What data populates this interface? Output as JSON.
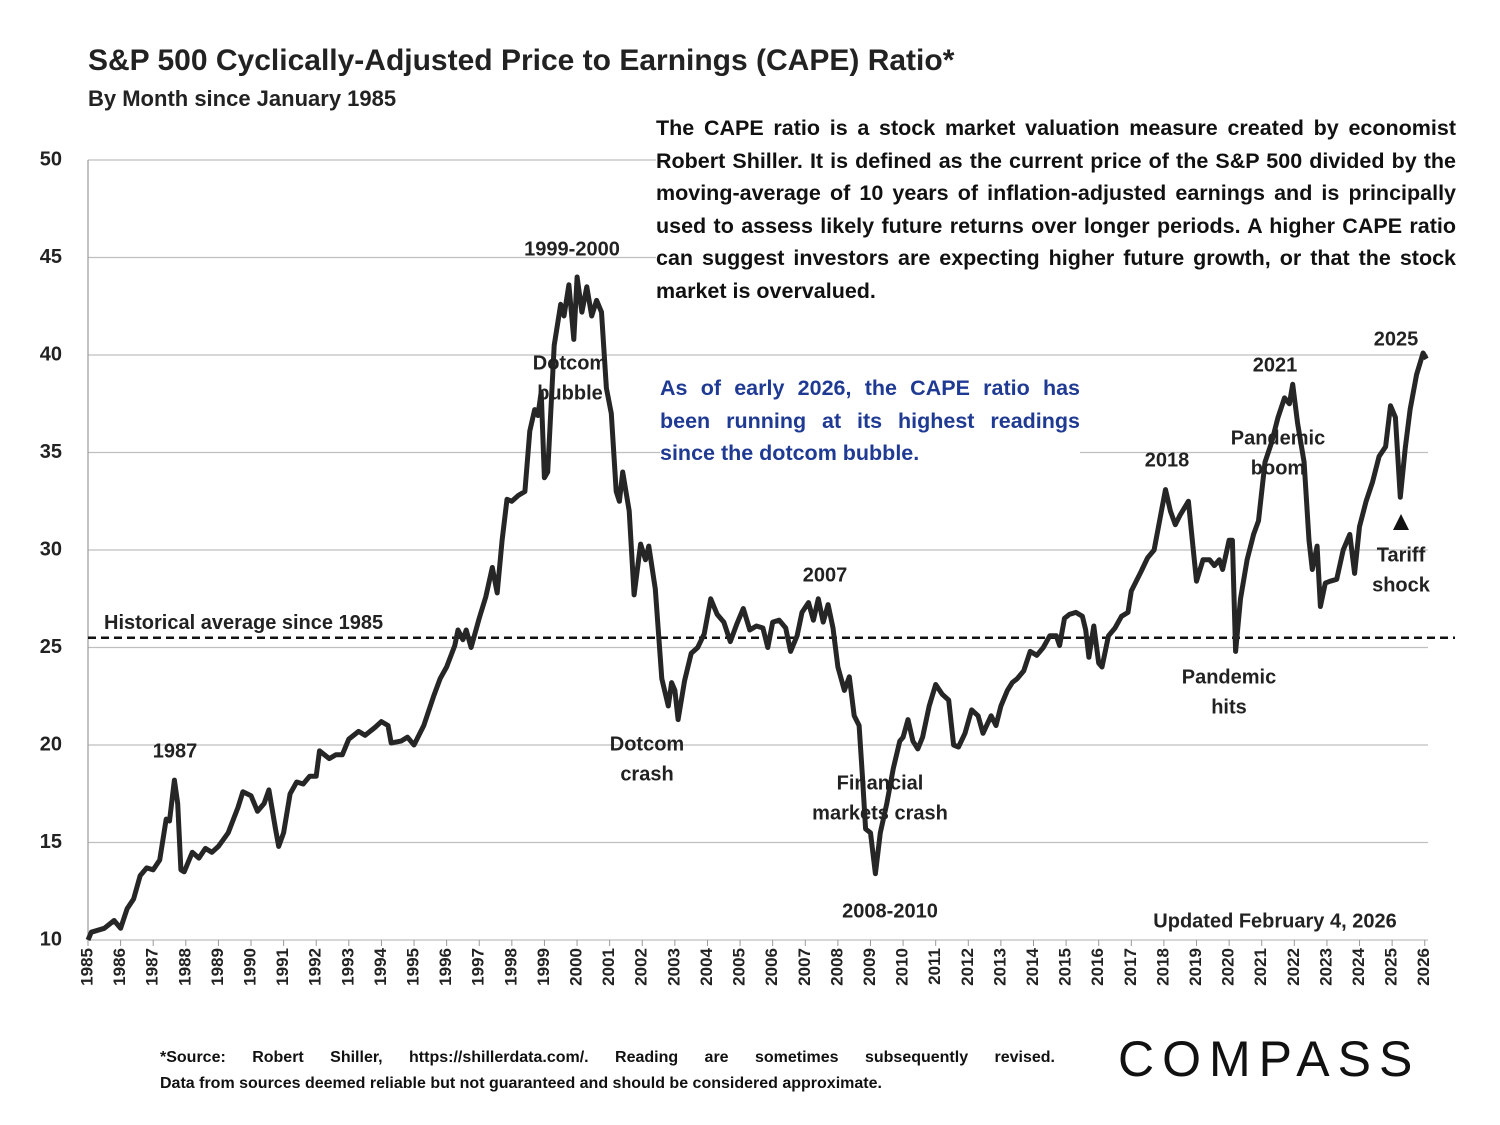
{
  "chart_data": {
    "type": "line",
    "title": "S&P 500 Cyclically-Adjusted Price to Earnings (CAPE) Ratio*",
    "subtitle": "By Month since January 1985",
    "description": "The CAPE ratio is a stock market valuation measure created by economist Robert Shiller. It is defined as the current price of the S&P 500 divided by the moving-average of 10 years of inflation-adjusted earnings and is principally used to assess likely future returns over longer periods. A higher CAPE ratio can suggest investors are expecting higher future growth, or that the stock market is overvalued.",
    "note": "As of early 2026, the CAPE ratio has been running at its highest readings since the dotcom bubble.",
    "updated": "Updated February 4, 2026",
    "source": [
      "*Source: Robert Shiller, https://shillerdata.com/. Reading are sometimes subsequently revised.",
      "Data from sources deemed reliable but not guaranteed and should be considered approximate."
    ],
    "logo": "COMPASS",
    "color": "#262626",
    "grid": true,
    "reference_line": {
      "value": 25.5,
      "label": "Historical average since 1985"
    },
    "annotations": [
      [
        "1987"
      ],
      [
        "1999-2000"
      ],
      [
        "Dotcom",
        "bubble"
      ],
      [
        "Dotcom",
        "crash"
      ],
      [
        "2007"
      ],
      [
        "Financial",
        "markets crash"
      ],
      [
        "2008-2010"
      ],
      [
        "2018"
      ],
      [
        "2021"
      ],
      [
        "Pandemic",
        "boom"
      ],
      [
        "Pandemic",
        "hits"
      ],
      [
        "2025"
      ],
      [
        "Tariff",
        "shock"
      ]
    ],
    "xlim": [
      1985,
      2026.1
    ],
    "xticks": [
      1985,
      1986,
      1987,
      1988,
      1989,
      1990,
      1991,
      1992,
      1993,
      1994,
      1995,
      1996,
      1997,
      1998,
      1999,
      2000,
      2001,
      2002,
      2003,
      2004,
      2005,
      2006,
      2007,
      2008,
      2009,
      2010,
      2011,
      2012,
      2013,
      2014,
      2015,
      2016,
      2017,
      2018,
      2019,
      2020,
      2021,
      2022,
      2023,
      2024,
      2025,
      2026
    ],
    "ylim": [
      10,
      50
    ],
    "yticks": [
      10,
      15,
      20,
      25,
      30,
      35,
      40,
      45,
      50
    ],
    "x": [
      1985.0,
      1985.1,
      1985.5,
      1985.8,
      1986.0,
      1986.2,
      1986.4,
      1986.6,
      1986.8,
      1987.0,
      1987.2,
      1987.4,
      1987.5,
      1987.65,
      1987.75,
      1987.85,
      1987.95,
      1988.2,
      1988.4,
      1988.6,
      1988.8,
      1989.0,
      1989.3,
      1989.6,
      1989.75,
      1990.0,
      1990.2,
      1990.4,
      1990.55,
      1990.75,
      1990.85,
      1991.0,
      1991.2,
      1991.4,
      1991.6,
      1991.8,
      1992.0,
      1992.1,
      1992.4,
      1992.6,
      1992.8,
      1993.0,
      1993.3,
      1993.5,
      1993.8,
      1994.0,
      1994.2,
      1994.3,
      1994.6,
      1994.8,
      1995.0,
      1995.3,
      1995.6,
      1995.8,
      1996.0,
      1996.25,
      1996.35,
      1996.5,
      1996.6,
      1996.75,
      1997.0,
      1997.2,
      1997.4,
      1997.55,
      1997.7,
      1997.85,
      1998.0,
      1998.2,
      1998.4,
      1998.55,
      1998.7,
      1998.8,
      1998.9,
      1999.0,
      1999.1,
      1999.3,
      1999.5,
      1999.6,
      1999.75,
      1999.9,
      2000.0,
      2000.15,
      2000.3,
      2000.45,
      2000.6,
      2000.75,
      2000.9,
      2001.05,
      2001.2,
      2001.3,
      2001.4,
      2001.6,
      2001.75,
      2001.95,
      2002.1,
      2002.2,
      2002.4,
      2002.6,
      2002.8,
      2002.9,
      2003.0,
      2003.1,
      2003.3,
      2003.5,
      2003.7,
      2003.9,
      2004.1,
      2004.3,
      2004.5,
      2004.7,
      2004.9,
      2005.1,
      2005.3,
      2005.5,
      2005.7,
      2005.85,
      2006.0,
      2006.2,
      2006.4,
      2006.55,
      2006.75,
      2006.9,
      2007.1,
      2007.25,
      2007.4,
      2007.55,
      2007.7,
      2007.85,
      2008.0,
      2008.2,
      2008.35,
      2008.5,
      2008.65,
      2008.75,
      2008.85,
      2009.0,
      2009.15,
      2009.3,
      2009.5,
      2009.7,
      2009.9,
      2010.0,
      2010.15,
      2010.3,
      2010.45,
      2010.6,
      2010.8,
      2011.0,
      2011.2,
      2011.4,
      2011.55,
      2011.7,
      2011.9,
      2012.1,
      2012.3,
      2012.45,
      2012.7,
      2012.85,
      2013.0,
      2013.2,
      2013.35,
      2013.5,
      2013.7,
      2013.9,
      2014.1,
      2014.3,
      2014.5,
      2014.7,
      2014.8,
      2014.95,
      2015.1,
      2015.3,
      2015.5,
      2015.6,
      2015.7,
      2015.85,
      2016.0,
      2016.1,
      2016.3,
      2016.5,
      2016.7,
      2016.9,
      2017.0,
      2017.3,
      2017.5,
      2017.7,
      2017.9,
      2018.05,
      2018.2,
      2018.35,
      2018.5,
      2018.75,
      2018.9,
      2019.0,
      2019.2,
      2019.4,
      2019.55,
      2019.7,
      2019.8,
      2020.0,
      2020.1,
      2020.2,
      2020.35,
      2020.55,
      2020.75,
      2020.9,
      2021.1,
      2021.3,
      2021.5,
      2021.7,
      2021.85,
      2021.95,
      2022.1,
      2022.3,
      2022.45,
      2022.55,
      2022.7,
      2022.8,
      2022.95,
      2023.1,
      2023.3,
      2023.5,
      2023.7,
      2023.85,
      2024.0,
      2024.2,
      2024.4,
      2024.6,
      2024.8,
      2024.95,
      2025.1,
      2025.25,
      2025.4,
      2025.55,
      2025.75,
      2025.95,
      2026.05
    ],
    "values": [
      10.0,
      10.4,
      10.6,
      11.0,
      10.6,
      11.6,
      12.1,
      13.3,
      13.7,
      13.6,
      14.1,
      16.2,
      16.1,
      18.2,
      17.0,
      13.6,
      13.5,
      14.5,
      14.2,
      14.7,
      14.5,
      14.8,
      15.5,
      16.8,
      17.6,
      17.4,
      16.6,
      17.0,
      17.7,
      15.7,
      14.8,
      15.5,
      17.5,
      18.1,
      18.0,
      18.4,
      18.4,
      19.7,
      19.3,
      19.5,
      19.5,
      20.3,
      20.7,
      20.5,
      20.9,
      21.2,
      21.0,
      20.1,
      20.2,
      20.4,
      20.0,
      21.0,
      22.5,
      23.4,
      24.0,
      25.1,
      25.9,
      25.4,
      25.9,
      25.0,
      26.5,
      27.6,
      29.1,
      27.8,
      30.5,
      32.6,
      32.5,
      32.8,
      33.0,
      36.1,
      37.2,
      36.9,
      38.1,
      33.7,
      34.0,
      40.5,
      42.6,
      42.0,
      43.6,
      40.8,
      44.0,
      42.2,
      43.5,
      42.0,
      42.8,
      42.2,
      38.3,
      37.0,
      33.0,
      32.5,
      34.0,
      32.0,
      27.7,
      30.3,
      29.5,
      30.2,
      28.0,
      23.4,
      22.0,
      23.2,
      22.8,
      21.3,
      23.3,
      24.7,
      25.0,
      25.7,
      27.5,
      26.7,
      26.3,
      25.3,
      26.2,
      27.0,
      25.9,
      26.1,
      26.0,
      25.0,
      26.3,
      26.4,
      26.0,
      24.8,
      25.6,
      26.8,
      27.3,
      26.4,
      27.5,
      26.3,
      27.2,
      26.0,
      24.0,
      22.8,
      23.5,
      21.5,
      21.0,
      18.5,
      15.7,
      15.5,
      13.4,
      15.5,
      17.0,
      18.8,
      20.2,
      20.4,
      21.3,
      20.2,
      19.8,
      20.4,
      22.0,
      23.1,
      22.6,
      22.3,
      20.0,
      19.9,
      20.6,
      21.8,
      21.5,
      20.6,
      21.5,
      21.0,
      22.0,
      22.8,
      23.2,
      23.4,
      23.8,
      24.8,
      24.6,
      25.0,
      25.6,
      25.6,
      25.1,
      26.5,
      26.7,
      26.8,
      26.6,
      25.9,
      24.5,
      26.1,
      24.2,
      24.0,
      25.6,
      26.0,
      26.6,
      26.8,
      27.9,
      28.9,
      29.6,
      30.0,
      31.8,
      33.1,
      32.0,
      31.3,
      31.8,
      32.5,
      30.0,
      28.4,
      29.5,
      29.5,
      29.2,
      29.5,
      29.0,
      30.5,
      30.5,
      24.8,
      27.5,
      29.5,
      30.8,
      31.5,
      34.5,
      35.5,
      36.8,
      37.8,
      37.5,
      38.5,
      36.5,
      34.5,
      30.5,
      29.0,
      30.2,
      27.1,
      28.3,
      28.4,
      28.5,
      30.0,
      30.8,
      28.8,
      31.2,
      32.5,
      33.5,
      34.8,
      35.3,
      37.4,
      36.8,
      32.7,
      35.2,
      37.2,
      39.0,
      40.1,
      39.8
    ]
  }
}
